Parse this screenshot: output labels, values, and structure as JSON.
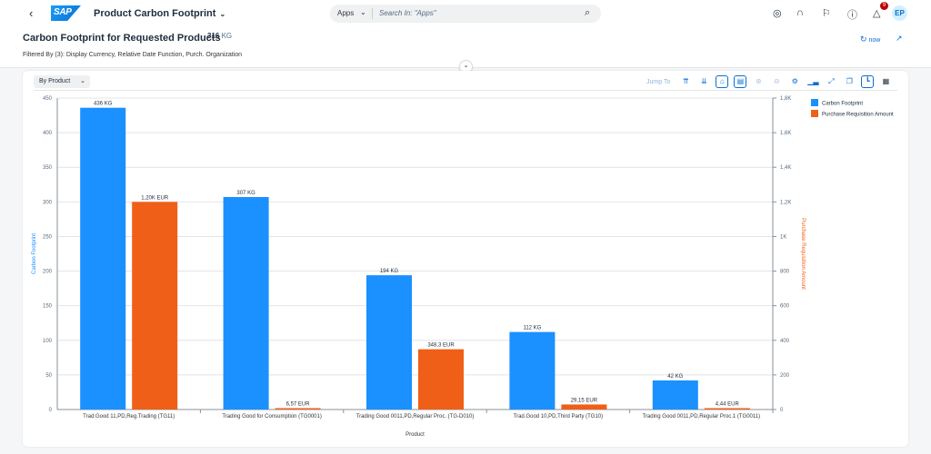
{
  "shell": {
    "app_title": "Product Carbon Footprint",
    "search_scope": "Apps",
    "search_placeholder": "Search In: \"Apps\"",
    "notification_count": "9",
    "avatar_initials": "EP"
  },
  "header": {
    "title": "Carbon Footprint for Requested Products",
    "kpi_value": "316",
    "kpi_unit": "KG",
    "filtered_by": "Filtered By (3): Display Currency, Relative Date Function, Purch. Organization",
    "refresh_label": "now"
  },
  "toolbar": {
    "view_select": "By Product",
    "jump_to": "Jump To"
  },
  "colors": {
    "carbon": "#1b90ff",
    "amount": "#f05f17",
    "accent": "#0a6ed1"
  },
  "chart_data": {
    "type": "bar",
    "categories": [
      "Trad.Good 11,PD,Reg.Trading (TG11)",
      "Trading Good for Consumption (TG0001)",
      "Trading Good 0011,PD,Regular Proc. (TG-D010)",
      "Trad.Good 10,PD,Third Party (TG10)",
      "Trading Good 0011,PD,Regular Proc.1 (TG0011)"
    ],
    "series": [
      {
        "name": "Carbon Footprint",
        "axis": "left",
        "values": [
          436,
          307,
          194,
          112,
          42
        ],
        "labels": [
          "436 KG",
          "307 KG",
          "194 KG",
          "112 KG",
          "42 KG"
        ]
      },
      {
        "name": "Purchase Requisition Amount",
        "axis": "right",
        "values": [
          1200,
          6.57,
          348.3,
          29.15,
          4.44
        ],
        "labels": [
          "1,20K EUR",
          "6,57 EUR",
          "348,3 EUR",
          "29,15 EUR",
          "4,44 EUR"
        ]
      }
    ],
    "xlabel": "Product",
    "ylabel": "Carbon Footprint",
    "y2label": "Purchase Requisition Amount",
    "ylim": [
      0,
      450
    ],
    "y2lim": [
      0,
      1800
    ],
    "yticks": [
      "0",
      "50",
      "100",
      "150",
      "200",
      "250",
      "300",
      "350",
      "400",
      "450"
    ],
    "y2ticks": [
      "0",
      "200",
      "400",
      "600",
      "800",
      "1K",
      "1,2K",
      "1,4K",
      "1,6K",
      "1,8K"
    ],
    "grid": true,
    "legend": "top-right"
  }
}
